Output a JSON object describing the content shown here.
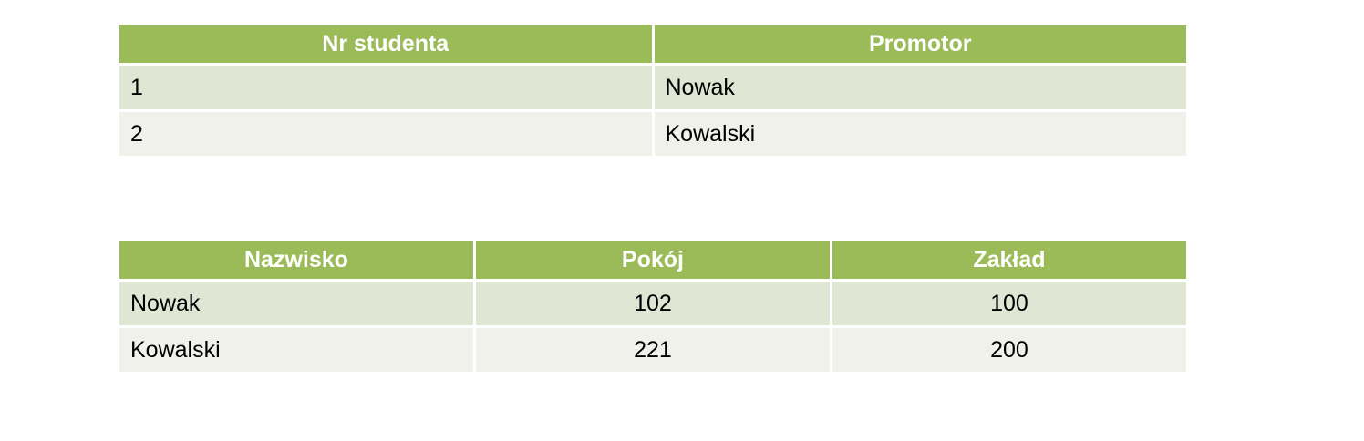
{
  "table_students": {
    "headers": [
      "Nr studenta",
      "Promotor"
    ],
    "rows": [
      [
        "1",
        "Nowak"
      ],
      [
        "2",
        "Kowalski"
      ]
    ]
  },
  "table_promoters": {
    "headers": [
      "Nazwisko",
      "Pokój",
      "Zakład"
    ],
    "rows": [
      [
        "Nowak",
        "102",
        "100"
      ],
      [
        "Kowalski",
        "221",
        "200"
      ]
    ]
  },
  "colors": {
    "header_bg": "#9bbb59",
    "row_odd_bg": "#dfe7d4",
    "row_even_bg": "#eff1ea",
    "header_text": "#ffffff"
  }
}
